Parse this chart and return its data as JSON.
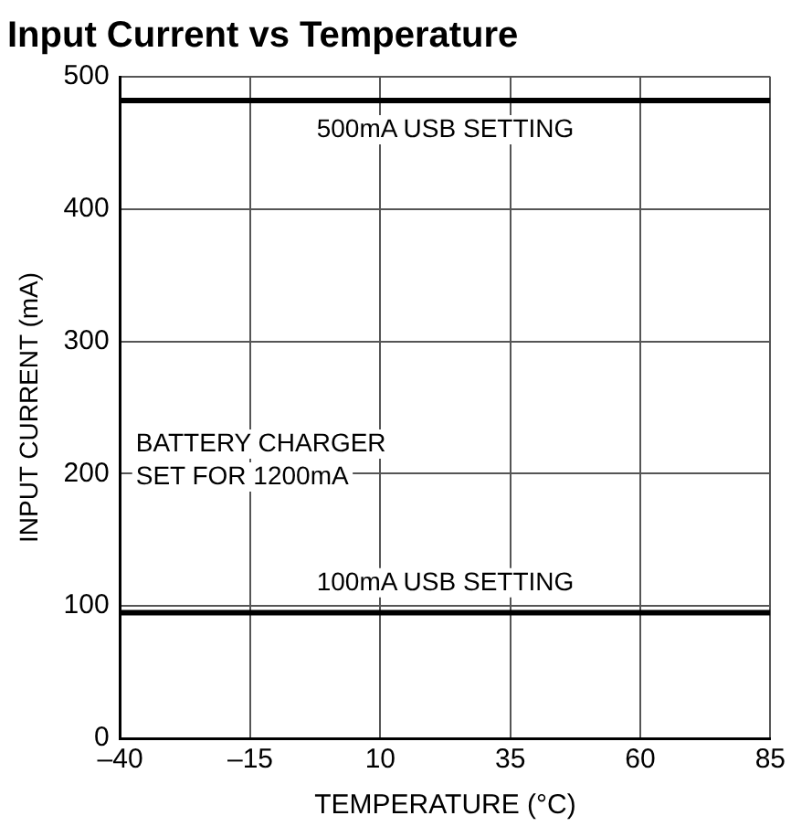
{
  "chart_data": {
    "type": "line",
    "title": "Input Current vs Temperature",
    "xlabel": "TEMPERATURE (°C)",
    "ylabel": "INPUT CURRENT (mA)",
    "x": [
      -40,
      85
    ],
    "series": [
      {
        "color": "#000000",
        "values": [
          482,
          482
        ]
      },
      {
        "color": "#000000",
        "values": [
          95,
          95
        ]
      }
    ],
    "xlim": [
      -40,
      85
    ],
    "xticks": [
      {
        "value": -40,
        "label": "–40"
      },
      {
        "value": -15,
        "label": "–15"
      },
      10,
      35,
      60,
      85
    ],
    "ylim": [
      0,
      500
    ],
    "yticks": [
      0,
      100,
      200,
      300,
      400,
      500
    ],
    "grid": true,
    "legend": false,
    "marker": "none",
    "line_style": "solid",
    "annotations": [
      "500mA USB SETTING",
      "BATTERY CHARGER\nSET FOR 1200mA",
      "100mA USB SETTING"
    ]
  }
}
